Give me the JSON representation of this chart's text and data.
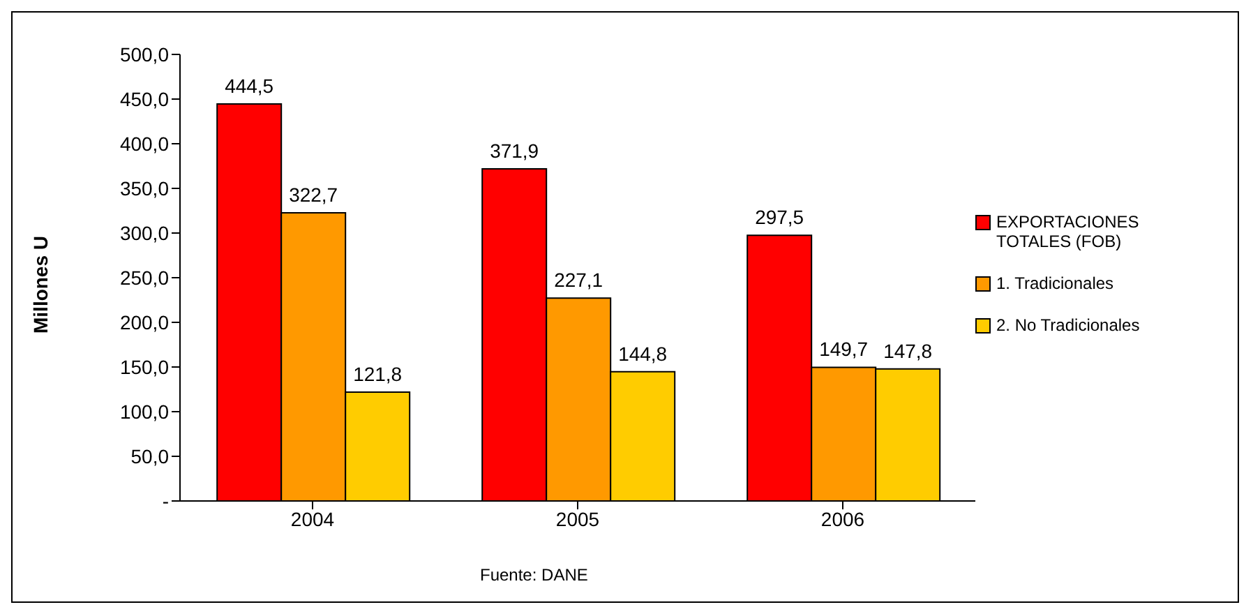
{
  "chart_data": {
    "type": "bar",
    "ylabel": "Millones U",
    "categories": [
      "2004",
      "2005",
      "2006"
    ],
    "series": [
      {
        "name": "EXPORTACIONES TOTALES (FOB)",
        "color": "#ff0000",
        "values": [
          444.5,
          371.9,
          297.5
        ],
        "value_labels": [
          "444,5",
          "371,9",
          "297,5"
        ]
      },
      {
        "name": "1. Tradicionales",
        "color": "#ff9900",
        "values": [
          322.7,
          227.1,
          149.7
        ],
        "value_labels": [
          "322,7",
          "227,1",
          "149,7"
        ]
      },
      {
        "name": "2. No Tradicionales",
        "color": "#ffcc00",
        "values": [
          121.8,
          144.8,
          147.8
        ],
        "value_labels": [
          "121,8",
          "144,8",
          "147,8"
        ]
      }
    ],
    "ylim": [
      0,
      500
    ],
    "yticks": [
      {
        "value": 0,
        "label": "-"
      },
      {
        "value": 50,
        "label": "50,0"
      },
      {
        "value": 100,
        "label": "100,0"
      },
      {
        "value": 150,
        "label": "150,0"
      },
      {
        "value": 200,
        "label": "200,0"
      },
      {
        "value": 250,
        "label": "250,0"
      },
      {
        "value": 300,
        "label": "300,0"
      },
      {
        "value": 350,
        "label": "350,0"
      },
      {
        "value": 400,
        "label": "400,0"
      },
      {
        "value": 450,
        "label": "450,0"
      },
      {
        "value": 500,
        "label": "500,0"
      }
    ],
    "grid": false,
    "legend": "right",
    "annotations": [
      "Fuente: DANE"
    ]
  }
}
